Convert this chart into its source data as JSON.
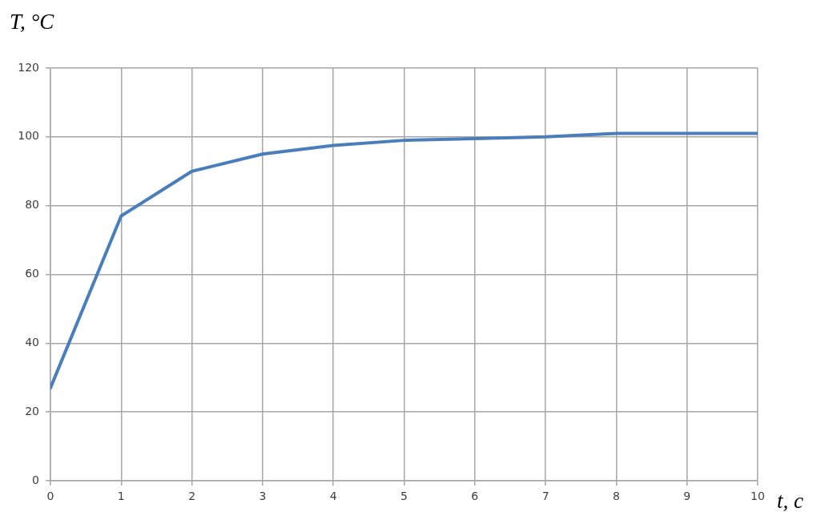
{
  "chart_data": {
    "type": "line",
    "xlabel": "t, с",
    "ylabel": "T, °C",
    "x": [
      0,
      1,
      2,
      3,
      4,
      5,
      6,
      7,
      8,
      9,
      10
    ],
    "values": [
      27,
      77,
      90,
      95,
      97.5,
      99,
      99.5,
      100,
      101,
      101,
      101
    ],
    "color": "#4a7ebb",
    "xlim": [
      0,
      10
    ],
    "xticks": [
      0,
      1,
      2,
      3,
      4,
      5,
      6,
      7,
      8,
      9,
      10
    ],
    "ylim": [
      0,
      120
    ],
    "yticks": [
      0,
      20,
      40,
      60,
      80,
      100,
      120
    ],
    "grid": true,
    "marker": "none"
  }
}
